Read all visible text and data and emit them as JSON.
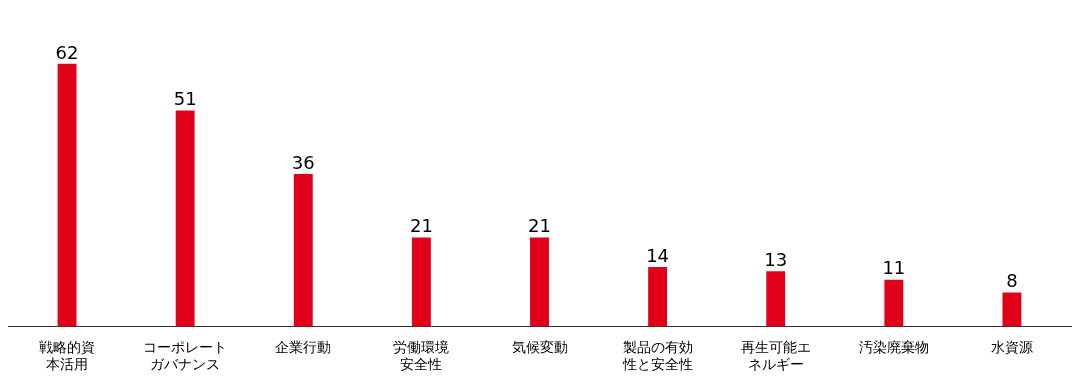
{
  "chart_data": {
    "type": "bar",
    "categories": [
      "戦略的資本活用",
      "コーポレートガバナンス",
      "企業行動",
      "労働環境安全性",
      "気候変動",
      "製品の有効性と安全性",
      "再生可能エネルギー",
      "汚染廃棄物",
      "水資源"
    ],
    "values": [
      62,
      51,
      36,
      21,
      21,
      14,
      13,
      11,
      8
    ],
    "color": "#e0001a",
    "data_labels": true,
    "grid": false,
    "legend": false
  }
}
